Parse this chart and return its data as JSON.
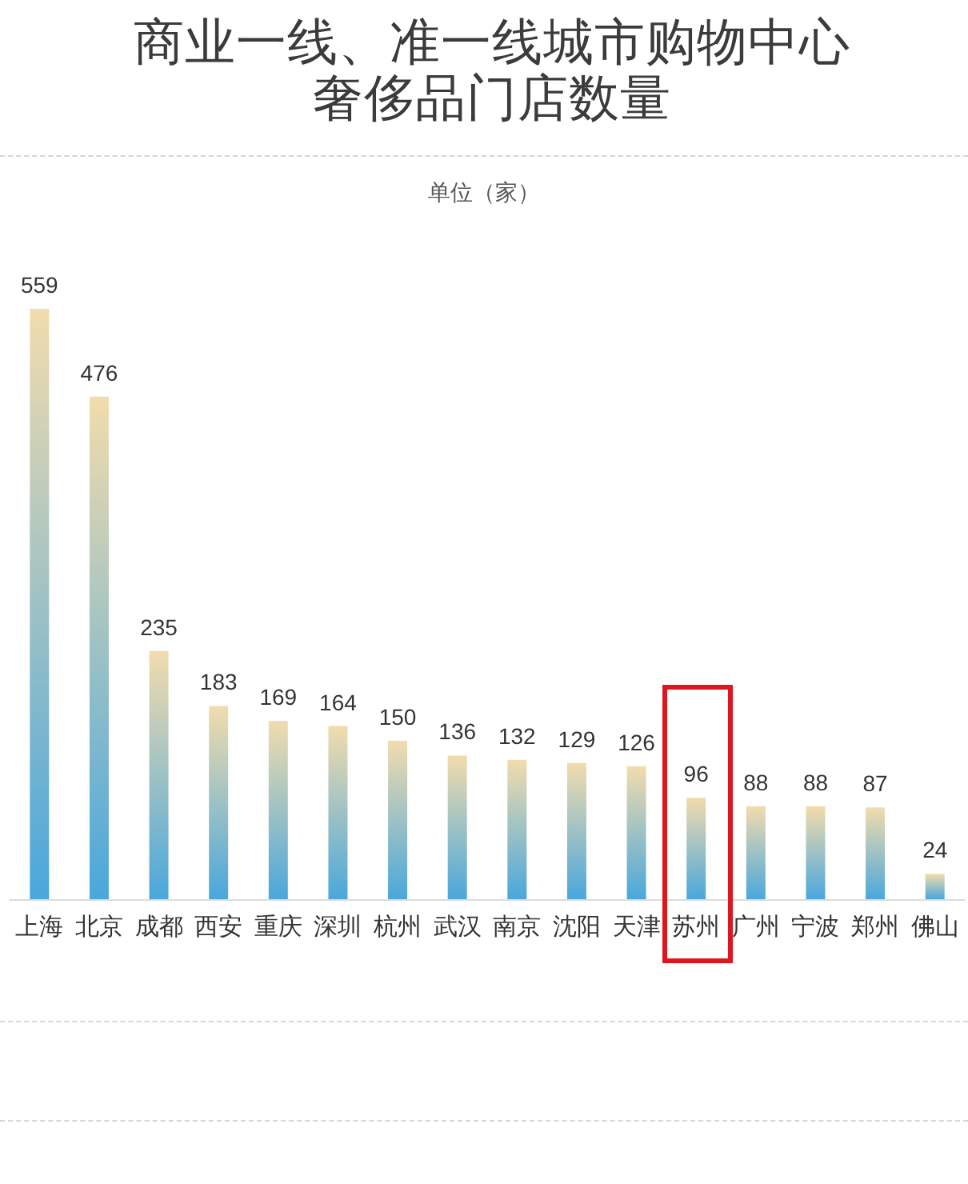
{
  "chart_data": {
    "type": "bar",
    "title": "商业一线、准一线城市购物中心奢侈品门店数量",
    "subtitle": "单位（家）",
    "categories": [
      "上海",
      "北京",
      "成都",
      "西安",
      "重庆",
      "深圳",
      "杭州",
      "武汉",
      "南京",
      "沈阳",
      "天津",
      "苏州",
      "广州",
      "宁波",
      "郑州",
      "佛山"
    ],
    "values": [
      559,
      476,
      235,
      183,
      169,
      164,
      150,
      136,
      132,
      129,
      126,
      96,
      88,
      88,
      87,
      24
    ],
    "color": "#4aa7dc",
    "data_labels": true
  }
}
